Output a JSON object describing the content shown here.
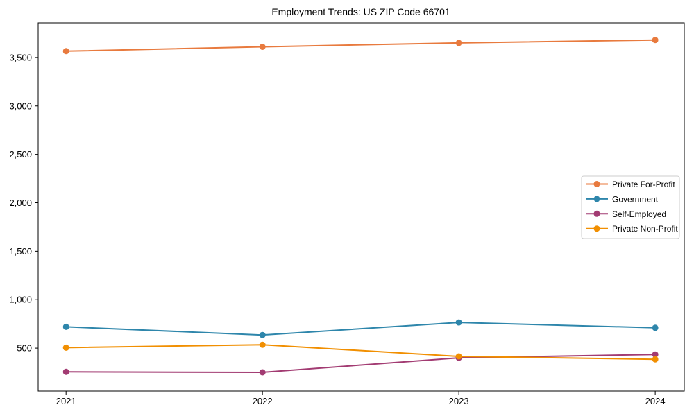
{
  "chart_data": {
    "type": "line",
    "title": "Employment Trends: US ZIP Code 66701",
    "xlabel": "",
    "ylabel": "",
    "x": [
      2021,
      2022,
      2023,
      2024
    ],
    "x_tick_labels": [
      "2021",
      "2022",
      "2023",
      "2024"
    ],
    "y_ticks": [
      500,
      1000,
      1500,
      2000,
      2500,
      3000,
      3500
    ],
    "y_tick_labels": [
      "500",
      "1,000",
      "1,500",
      "2,000",
      "2,500",
      "3,000",
      "3,500"
    ],
    "xlim": [
      2020.858,
      2024.148
    ],
    "ylim": [
      57,
      3857
    ],
    "grid": false,
    "background_color": "#ffffff",
    "axis_color": "#000000",
    "legend": {
      "position": "right",
      "border_color": "#cccccc",
      "background_color": "#ffffff"
    },
    "series": [
      {
        "name": "Private For-Profit",
        "color": "#E87A3E",
        "values": [
          3565,
          3610,
          3650,
          3680
        ]
      },
      {
        "name": "Government",
        "color": "#2E86AB",
        "values": [
          720,
          635,
          765,
          710
        ]
      },
      {
        "name": "Self-Employed",
        "color": "#A23B72",
        "values": [
          255,
          250,
          400,
          435
        ]
      },
      {
        "name": "Private Non-Profit",
        "color": "#F18F01",
        "values": [
          505,
          535,
          415,
          385
        ]
      }
    ]
  }
}
